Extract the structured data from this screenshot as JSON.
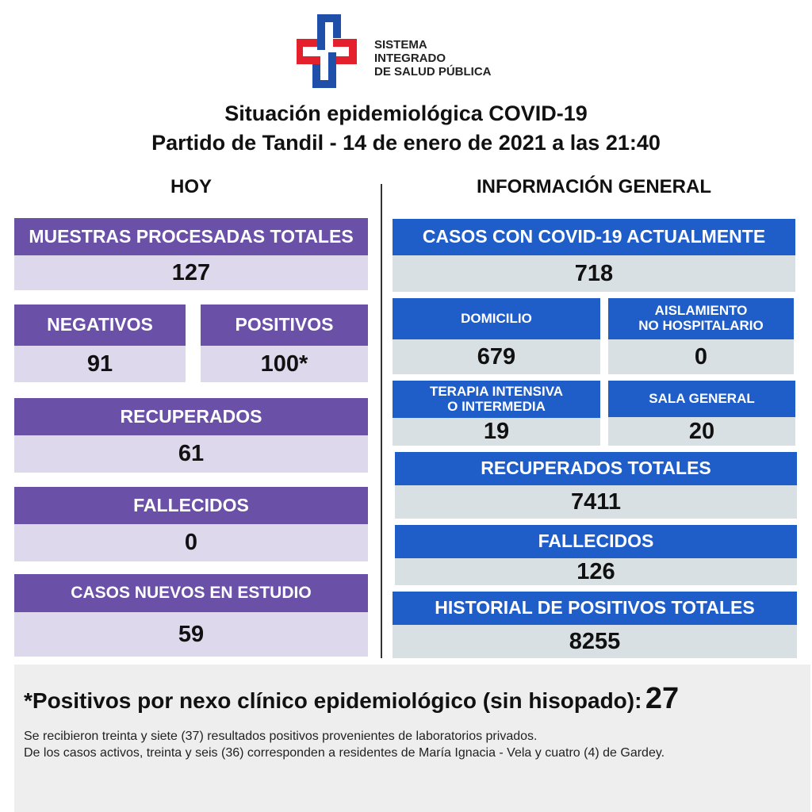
{
  "logo": {
    "line1": "SISTEMA INTEGRADO",
    "line2": "DE SALUD PÚBLICA"
  },
  "title": {
    "line1": "Situación epidemiológica COVID-19",
    "line2": "Partido de Tandil - 14 de enero de 2021 a las 21:40"
  },
  "hoy": {
    "heading": "HOY",
    "muestras": {
      "label": "MUESTRAS PROCESADAS TOTALES",
      "value": "127"
    },
    "negativos": {
      "label": "NEGATIVOS",
      "value": "91"
    },
    "positivos": {
      "label": "POSITIVOS",
      "value": "100*"
    },
    "recuperados": {
      "label": "RECUPERADOS",
      "value": "61"
    },
    "fallecidos": {
      "label": "FALLECIDOS",
      "value": "0"
    },
    "casos_nuevos": {
      "label": "CASOS NUEVOS EN ESTUDIO",
      "value": "59"
    }
  },
  "general": {
    "heading": "INFORMACIÓN GENERAL",
    "casos": {
      "label": "CASOS CON COVID-19 ACTUALMENTE",
      "value": "718"
    },
    "domicilio": {
      "label": "DOMICILIO",
      "value": "679"
    },
    "aislamiento": {
      "label1": "AISLAMIENTO",
      "label2": "NO HOSPITALARIO",
      "value": "0"
    },
    "terapia": {
      "label1": "TERAPIA INTENSIVA",
      "label2": "O INTERMEDIA",
      "value": "19"
    },
    "sala": {
      "label": "SALA GENERAL",
      "value": "20"
    },
    "recuperados": {
      "label": "RECUPERADOS TOTALES",
      "value": "7411"
    },
    "fallecidos": {
      "label": "FALLECIDOS",
      "value": "126"
    },
    "historial": {
      "label": "HISTORIAL DE POSITIVOS TOTALES",
      "value": "8255"
    }
  },
  "footer": {
    "nexo_label": "*Positivos por nexo clínico epidemiológico (sin hisopado):",
    "nexo_value": "27",
    "note1": "Se recibieron treinta y siete (37) resultados positivos provenientes de laboratorios privados.",
    "note2": "De los casos activos, treinta y seis (36) corresponden a residentes de María Ignacia - Vela y cuatro (4) de Gardey."
  },
  "colors": {
    "purple": "#6b50a8",
    "lavender": "#ddd8ec",
    "blue": "#1f5ec9",
    "gray_blue": "#d9e0e3",
    "logo_red": "#e3202b",
    "logo_blue": "#1f4fa8"
  }
}
